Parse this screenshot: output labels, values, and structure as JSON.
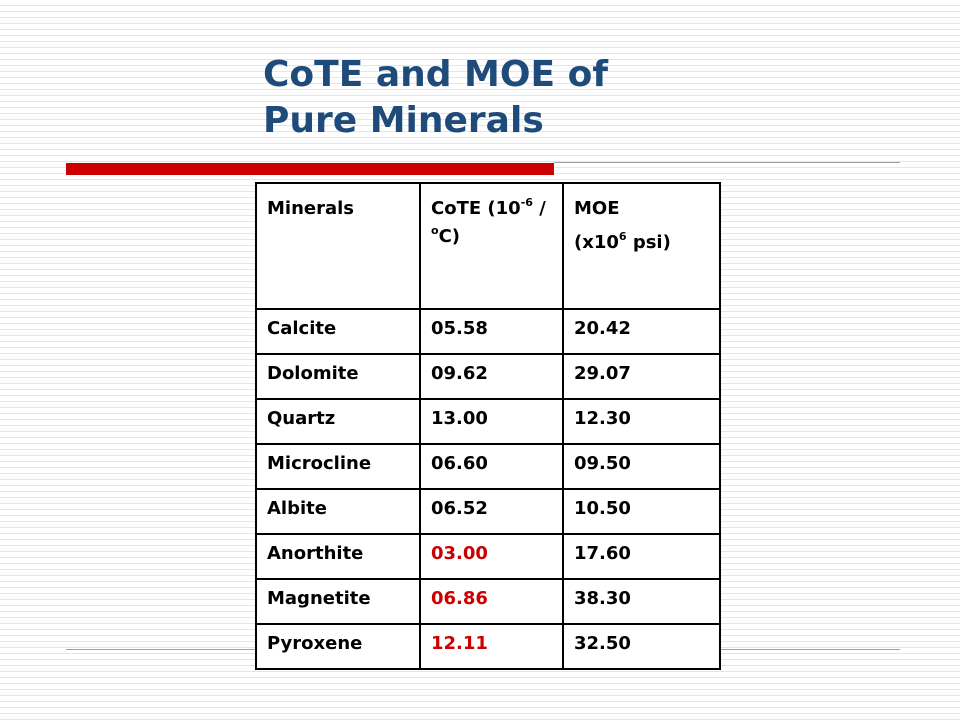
{
  "slide": {
    "title_line1": "CoTE and MOE of",
    "title_line2": "Pure Minerals"
  },
  "table": {
    "headers": {
      "minerals": "Minerals",
      "cote": {
        "prefix": " CoTE (10",
        "exponent": "-6",
        "mid": " / ",
        "degree": "o",
        "suffix": "C)"
      },
      "moe": {
        "line1": "MOE",
        "prefix": "(x10",
        "exponent": "6",
        "suffix": " psi)"
      }
    },
    "rows": [
      {
        "mineral": "Calcite",
        "cote": "05.58",
        "moe": "20.42",
        "cote_highlight": false
      },
      {
        "mineral": "Dolomite",
        "cote": "09.62",
        "moe": "29.07",
        "cote_highlight": false
      },
      {
        "mineral": "Quartz",
        "cote": "13.00",
        "moe": "12.30",
        "cote_highlight": false
      },
      {
        "mineral": "Microcline",
        "cote": "06.60",
        "moe": "09.50",
        "cote_highlight": false
      },
      {
        "mineral": "Albite",
        "cote": "06.52",
        "moe": "10.50",
        "cote_highlight": false
      },
      {
        "mineral": "Anorthite",
        "cote": "03.00",
        "moe": "17.60",
        "cote_highlight": true
      },
      {
        "mineral": "Magnetite",
        "cote": "06.86",
        "moe": "38.30",
        "cote_highlight": true
      },
      {
        "mineral": "Pyroxene",
        "cote": "12.11",
        "moe": "32.50",
        "cote_highlight": true
      }
    ]
  },
  "colors": {
    "title": "#1f4b7a",
    "accent_bar": "#cc0000",
    "highlight_text": "#cc0000"
  }
}
